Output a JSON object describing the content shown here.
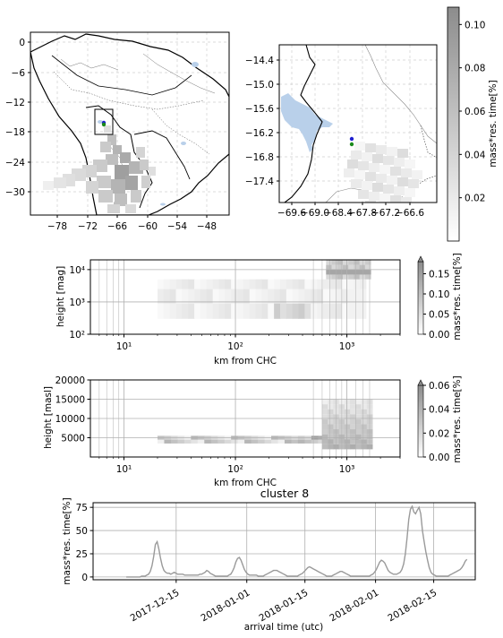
{
  "chart_data": [
    {
      "type": "map",
      "yticks": [
        "0",
        "−6",
        "−12",
        "−18",
        "−24",
        "−30"
      ],
      "xticks": [
        "−78",
        "−72",
        "−66",
        "−60",
        "−54",
        "−48"
      ],
      "colors": {
        "land_border": "#000000",
        "admin": "#555555",
        "water": "#b9d0ea"
      }
    },
    {
      "type": "map",
      "yticks": [
        "−14.4",
        "−15.0",
        "−15.6",
        "−16.2",
        "−16.8",
        "−17.4"
      ],
      "xticks": [
        "−69.6",
        "−69.0",
        "−68.4",
        "−67.8",
        "−67.2",
        "−66.6"
      ],
      "markers": [
        {
          "color": "#1f1fd0"
        },
        {
          "color": "#1a8a1a"
        }
      ]
    },
    {
      "type": "colorbar",
      "ticks": [
        "0.02",
        "0.04",
        "0.06",
        "0.08",
        "0.10"
      ],
      "label": "mass*res. time[%]",
      "range": [
        0,
        0.108
      ]
    },
    {
      "type": "heatmap",
      "xlabel": "km from CHC",
      "ylabel": "height [mag]",
      "xticks": [
        "10¹",
        "10²",
        "10³"
      ],
      "yticks": [
        "10⁴",
        "10³",
        "10²"
      ],
      "xrange": [
        5,
        3000
      ],
      "yrange": [
        100,
        20000
      ],
      "log_x": true,
      "log_y": true,
      "colorbar": {
        "ticks": [
          "0.00",
          "0.05",
          "0.10",
          "0.15"
        ],
        "label": "mass*res. time[%]",
        "range": [
          0,
          0.18
        ]
      }
    },
    {
      "type": "heatmap",
      "xlabel": "km from CHC",
      "ylabel": "height [masl]",
      "xticks": [
        "10¹",
        "10²",
        "10³"
      ],
      "yticks": [
        "20000",
        "15000",
        "10000",
        "5000"
      ],
      "xrange": [
        5,
        3000
      ],
      "yrange": [
        0,
        20000
      ],
      "log_x": true,
      "colorbar": {
        "ticks": [
          "0.00",
          "0.02",
          "0.04",
          "0.06"
        ],
        "label": "mass*res. time[%]",
        "range": [
          0,
          0.06
        ]
      }
    },
    {
      "type": "line",
      "title": "cluster 8",
      "xlabel": "arrival time (utc)",
      "ylabel": "mass*res. time[%]",
      "yticks": [
        "75",
        "50",
        "25",
        "0"
      ],
      "xticks": [
        "2017-12-15",
        "2018-01-01",
        "2018-01-15",
        "2018-02-01",
        "2018-02-15"
      ],
      "ylim": [
        -3,
        80
      ],
      "line_color": "#9a9a9a",
      "x_start": "2017-12-03",
      "x_end": "2018-02-23",
      "series": [
        {
          "values": [
            0,
            0,
            0,
            0,
            0,
            0,
            0,
            0,
            0,
            1,
            1,
            1,
            2,
            3,
            6,
            12,
            22,
            35,
            38,
            30,
            20,
            12,
            7,
            5,
            4,
            4,
            3,
            4,
            5,
            4,
            3,
            3,
            3,
            3,
            2,
            2,
            2,
            2,
            2,
            2,
            2,
            2,
            2,
            3,
            3,
            4,
            5,
            7,
            6,
            4,
            3,
            2,
            1,
            1,
            1,
            1,
            1,
            1,
            1,
            1,
            2,
            3,
            6,
            10,
            16,
            20,
            21,
            18,
            13,
            8,
            5,
            3,
            2,
            2,
            2,
            2,
            2,
            1,
            1,
            1,
            1,
            2,
            3,
            4,
            5,
            6,
            7,
            7,
            7,
            6,
            5,
            4,
            3,
            2,
            1,
            1,
            1,
            1,
            1,
            1,
            1,
            2,
            3,
            4,
            6,
            8,
            10,
            11,
            10,
            9,
            8,
            7,
            6,
            5,
            4,
            3,
            2,
            1,
            1,
            1,
            1,
            2,
            3,
            4,
            5,
            6,
            6,
            5,
            4,
            3,
            2,
            1,
            1,
            1,
            1,
            1,
            1,
            1,
            1,
            1,
            1,
            1,
            1,
            2,
            3,
            5,
            8,
            12,
            16,
            18,
            17,
            15,
            11,
            7,
            5,
            4,
            3,
            3,
            3,
            4,
            5,
            8,
            14,
            25,
            42,
            62,
            73,
            76,
            70,
            68,
            72,
            75,
            68,
            50,
            38,
            27,
            18,
            10,
            5,
            3,
            2,
            1,
            1,
            1,
            1,
            1,
            1,
            1,
            1,
            2,
            3,
            4,
            5,
            6,
            7,
            8,
            10,
            13,
            17,
            19
          ]
        }
      ]
    }
  ]
}
